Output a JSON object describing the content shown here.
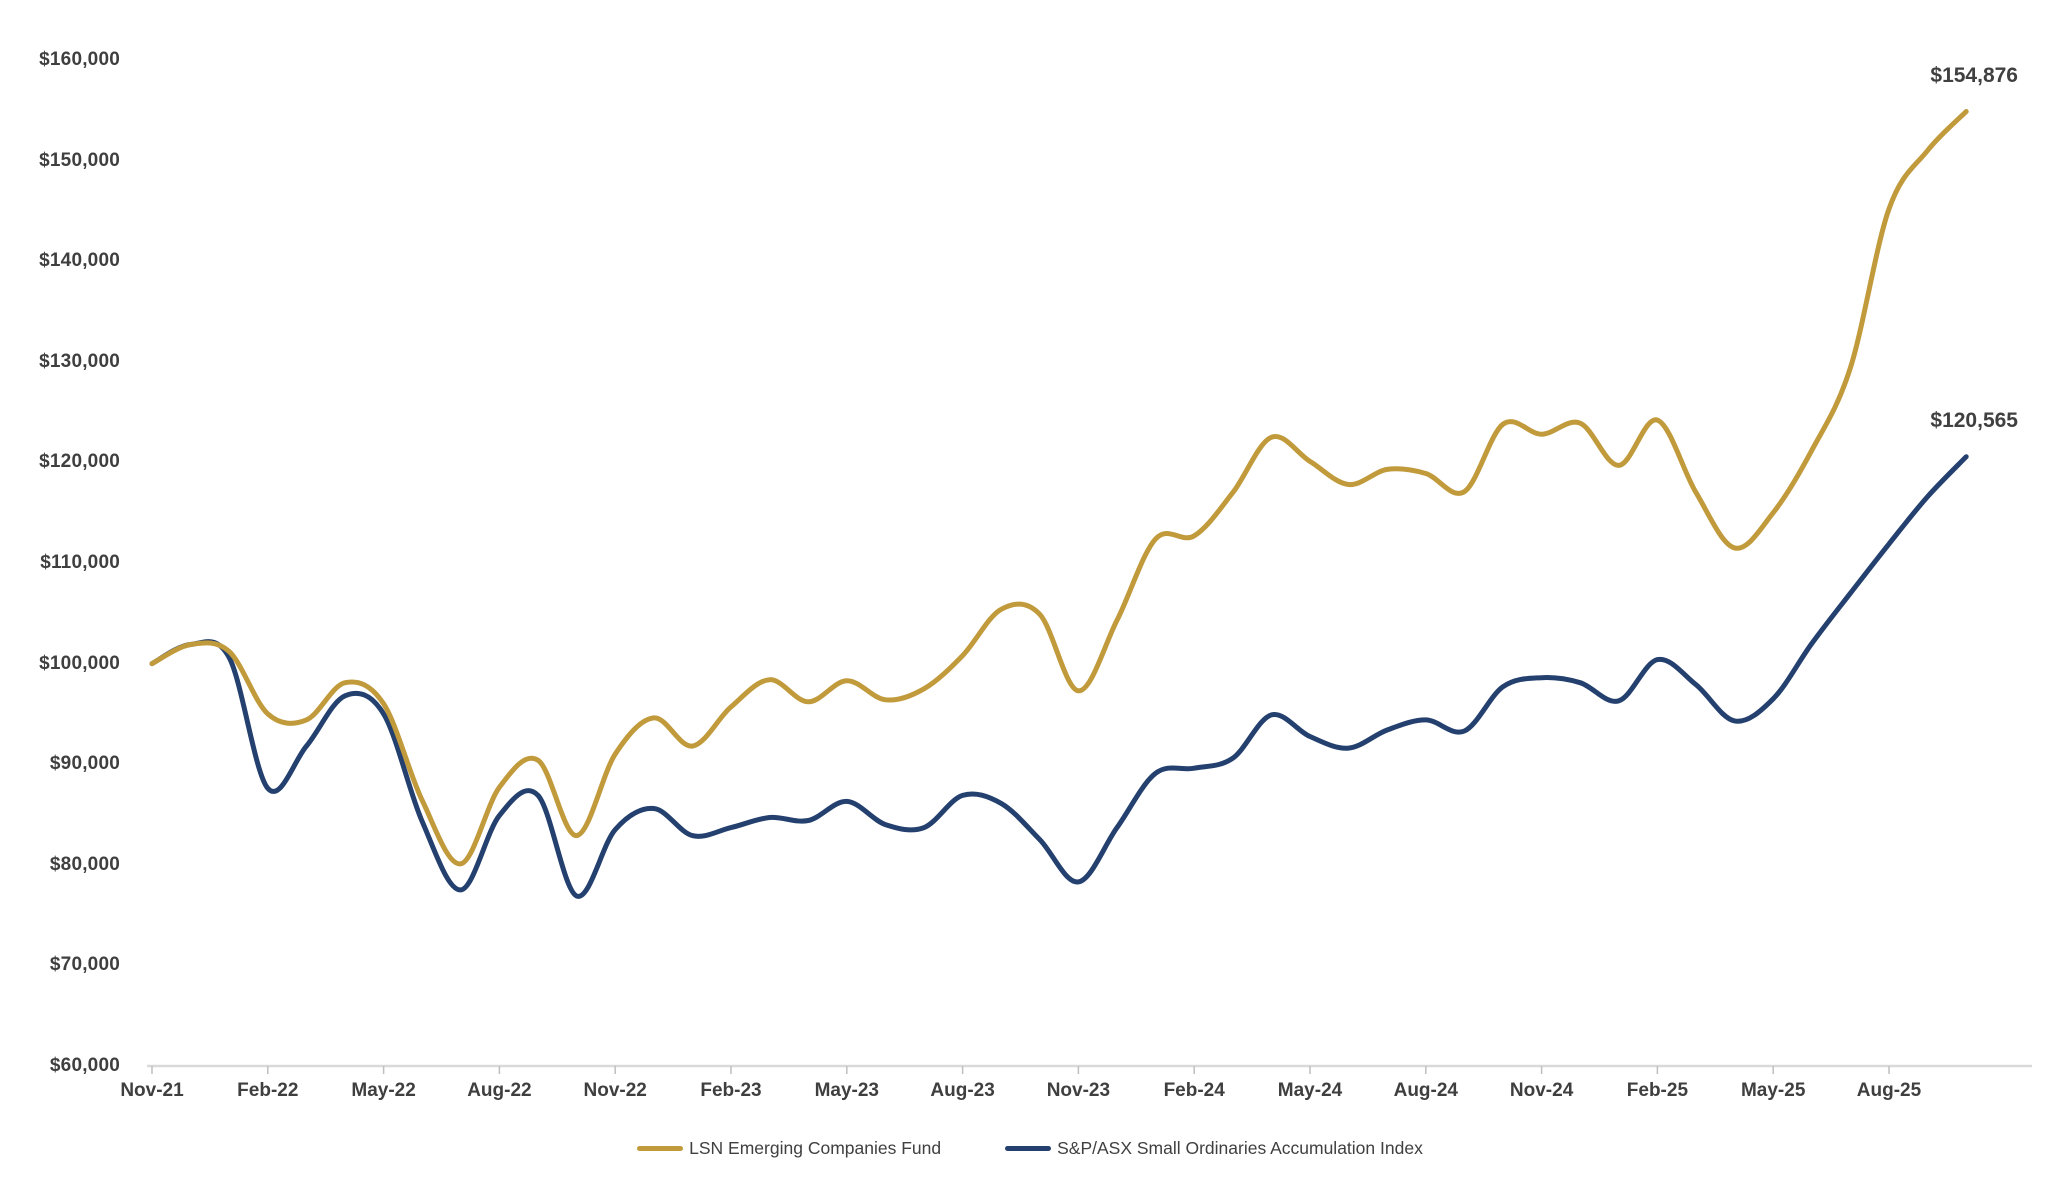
{
  "chart_data": {
    "type": "line",
    "title": "",
    "subtitle": "",
    "grid": false,
    "legend_position": "bottom",
    "x_tick_labels": [
      "Nov-21",
      "Feb-22",
      "May-22",
      "Aug-22",
      "Nov-22",
      "Feb-23",
      "May-23",
      "Aug-23",
      "Nov-23",
      "Feb-24",
      "May-24",
      "Aug-24",
      "Nov-24",
      "Feb-25",
      "May-25",
      "Aug-25"
    ],
    "months": [
      "Nov-21",
      "Dec-21",
      "Jan-22",
      "Feb-22",
      "Mar-22",
      "Apr-22",
      "May-22",
      "Jun-22",
      "Jul-22",
      "Aug-22",
      "Sep-22",
      "Oct-22",
      "Nov-22",
      "Dec-22",
      "Jan-23",
      "Feb-23",
      "Mar-23",
      "Apr-23",
      "May-23",
      "Jun-23",
      "Jul-23",
      "Aug-23",
      "Sep-23",
      "Oct-23",
      "Nov-23",
      "Dec-23",
      "Jan-24",
      "Feb-24",
      "Mar-24",
      "Apr-24",
      "May-24",
      "Jun-24",
      "Jul-24",
      "Aug-24",
      "Sep-24",
      "Oct-24",
      "Nov-24",
      "Dec-24",
      "Jan-25",
      "Feb-25",
      "Mar-25",
      "Apr-25",
      "May-25",
      "Jun-25",
      "Jul-25",
      "Aug-25",
      "Sep-25",
      "Oct-25"
    ],
    "y_axis": {
      "min": 60000,
      "max": 160000,
      "step": 10000,
      "tick_labels": [
        "$60,000",
        "$70,000",
        "$80,000",
        "$90,000",
        "$100,000",
        "$110,000",
        "$120,000",
        "$130,000",
        "$140,000",
        "$150,000",
        "$160,000"
      ]
    },
    "series": [
      {
        "name": "LSN Emerging Companies Fund",
        "color": "#C19A3B",
        "end_label": "$154,876",
        "end_value": 154876,
        "values": [
          100000,
          101900,
          101200,
          95000,
          94400,
          98100,
          96000,
          86400,
          80100,
          87700,
          90400,
          82900,
          91000,
          94600,
          91800,
          95700,
          98400,
          96200,
          98300,
          96400,
          97500,
          100800,
          105400,
          104900,
          97300,
          104300,
          112400,
          112700,
          117000,
          122500,
          120100,
          117800,
          119300,
          118900,
          117100,
          123800,
          122800,
          123900,
          119700,
          124200,
          117000,
          111500,
          115000,
          121200,
          129400,
          145200,
          151000,
          154876
        ]
      },
      {
        "name": "S&P/ASX Small Ordinaries Accumulation Index",
        "color": "#24406E",
        "end_label": "$120,565",
        "end_value": 120565,
        "values": [
          100000,
          101900,
          100600,
          87600,
          91800,
          96800,
          95000,
          84300,
          77500,
          84900,
          86900,
          76900,
          83500,
          85600,
          82900,
          83700,
          84700,
          84400,
          86300,
          84000,
          83700,
          86900,
          86100,
          82500,
          78300,
          83700,
          89100,
          89600,
          90600,
          94900,
          92750,
          91600,
          93400,
          94400,
          93300,
          97700,
          98600,
          98100,
          96300,
          100400,
          97900,
          94300,
          96500,
          102000,
          107000,
          111900,
          116600,
          120565
        ]
      }
    ]
  },
  "colors": {
    "axis_line": "#D9D9D9",
    "tick_mark": "#BFBFBF",
    "label_text": "#3F3F3F",
    "background": "#FFFFFF"
  }
}
